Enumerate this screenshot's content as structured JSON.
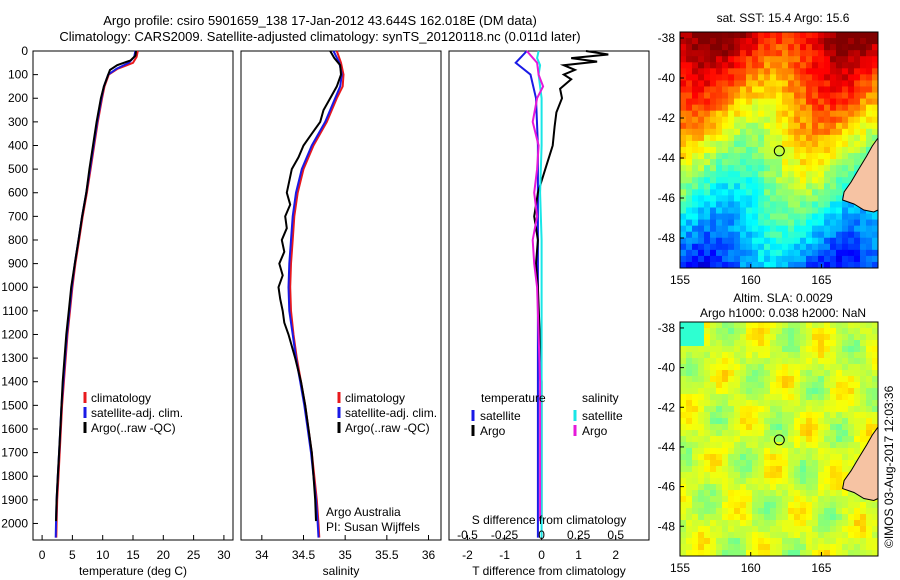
{
  "header": {
    "line1": "Argo profile: csiro 5901659_138 17-Jan-2012 43.644S 162.018E (DM data)",
    "line2": "Climatology: CARS2009. Satellite-adjusted climatology: synTS_20120118.nc (0.011d later)"
  },
  "credit": "©IMOS 03-Aug-2017 12:03:36",
  "colors": {
    "climatology": "#e8191d",
    "satellite": "#1a1ae6",
    "argo": "#000000",
    "sat_salinity": "#19e6e6",
    "argo_salinity": "#e619d9",
    "land": "#f6c3a3"
  },
  "chart_data": [
    {
      "type": "line",
      "panel": "temperature",
      "ylabel_ticks": [
        0,
        100,
        200,
        300,
        400,
        500,
        600,
        700,
        800,
        900,
        1000,
        1100,
        1200,
        1300,
        1400,
        1500,
        1600,
        1700,
        1800,
        1900,
        2000
      ],
      "xlabel": "temperature (deg C)",
      "xlim": [
        -1.5,
        31.5
      ],
      "ylim": [
        2070,
        0
      ],
      "xticks": [
        0,
        5,
        10,
        15,
        20,
        25,
        30
      ],
      "legend": [
        "climatology",
        "satellite-adj. clim.",
        "Argo(..raw -QC)"
      ],
      "series": [
        {
          "name": "climatology",
          "depth": [
            0,
            25,
            50,
            75,
            100,
            150,
            200,
            300,
            400,
            500,
            600,
            700,
            800,
            900,
            1000,
            1100,
            1200,
            1300,
            1400,
            1500,
            1600,
            1700,
            1800,
            1900,
            2000,
            2060
          ],
          "values": [
            15.8,
            15.6,
            15.0,
            12.5,
            11.0,
            10.3,
            9.9,
            9.2,
            8.6,
            8.0,
            7.4,
            6.7,
            6.1,
            5.5,
            5.0,
            4.6,
            4.2,
            3.9,
            3.6,
            3.3,
            3.1,
            2.9,
            2.7,
            2.5,
            2.4,
            2.35
          ]
        },
        {
          "name": "satellite-adj. clim.",
          "depth": [
            0,
            25,
            50,
            75,
            100,
            150,
            200,
            300,
            400,
            500,
            600,
            700,
            800,
            900,
            1000,
            1100,
            1200,
            1300,
            1400,
            1500,
            1600,
            1700,
            1800,
            1900,
            2000,
            2060
          ],
          "values": [
            15.4,
            15.2,
            14.3,
            12.3,
            10.9,
            10.2,
            9.8,
            9.1,
            8.5,
            7.9,
            7.3,
            6.6,
            6.0,
            5.4,
            4.9,
            4.5,
            4.1,
            3.8,
            3.5,
            3.2,
            3.0,
            2.8,
            2.6,
            2.4,
            2.3,
            2.25
          ]
        },
        {
          "name": "Argo(..raw -QC)",
          "depth": [
            0,
            20,
            40,
            60,
            80,
            100,
            150,
            200,
            300,
            400,
            500,
            600,
            700,
            800,
            900,
            1000,
            1100,
            1200,
            1300,
            1400,
            1500,
            1600,
            1700,
            1800,
            1900,
            1990
          ],
          "values": [
            15.5,
            15.4,
            14.6,
            12.4,
            11.2,
            10.9,
            10.2,
            9.7,
            9.0,
            8.4,
            7.8,
            7.3,
            6.6,
            6.0,
            5.4,
            4.8,
            4.4,
            4.0,
            3.7,
            3.4,
            3.2,
            3.0,
            2.8,
            2.6,
            2.4,
            2.3
          ]
        }
      ]
    },
    {
      "type": "line",
      "panel": "salinity",
      "xlabel": "salinity",
      "xlim": [
        33.75,
        36.15
      ],
      "ylim": [
        2070,
        0
      ],
      "xticks": [
        34,
        34.5,
        35,
        35.5,
        36
      ],
      "legend": [
        "climatology",
        "satellite-adj. clim.",
        "Argo(..raw -QC)"
      ],
      "annotation": [
        "Argo Australia",
        "PI: Susan Wijffels"
      ],
      "series": [
        {
          "name": "climatology",
          "depth": [
            0,
            50,
            100,
            150,
            200,
            300,
            400,
            500,
            600,
            700,
            800,
            900,
            1000,
            1100,
            1200,
            1300,
            1400,
            1500,
            1600,
            1700,
            1800,
            1900,
            2000,
            2060
          ],
          "values": [
            34.9,
            34.95,
            34.98,
            34.97,
            34.9,
            34.78,
            34.62,
            34.5,
            34.43,
            34.39,
            34.37,
            34.35,
            34.34,
            34.35,
            34.38,
            34.42,
            34.47,
            34.52,
            34.56,
            34.6,
            34.63,
            34.66,
            34.68,
            34.69
          ]
        },
        {
          "name": "satellite-adj. clim.",
          "depth": [
            0,
            50,
            100,
            150,
            200,
            300,
            400,
            500,
            600,
            700,
            800,
            900,
            1000,
            1100,
            1200,
            1300,
            1400,
            1500,
            1600,
            1700,
            1800,
            1900,
            2000,
            2060
          ],
          "values": [
            34.86,
            34.93,
            34.96,
            34.94,
            34.88,
            34.76,
            34.6,
            34.48,
            34.41,
            34.37,
            34.35,
            34.33,
            34.32,
            34.33,
            34.37,
            34.41,
            34.46,
            34.51,
            34.55,
            34.59,
            34.62,
            34.65,
            34.67,
            34.68
          ]
        },
        {
          "name": "Argo(..raw -QC)",
          "depth": [
            0,
            30,
            60,
            100,
            150,
            200,
            250,
            300,
            350,
            400,
            450,
            500,
            550,
            600,
            650,
            700,
            750,
            800,
            850,
            900,
            950,
            1000,
            1050,
            1100,
            1150,
            1200,
            1300,
            1400,
            1500,
            1600,
            1700,
            1800,
            1900,
            1990
          ],
          "values": [
            34.82,
            34.87,
            34.94,
            34.95,
            34.9,
            34.82,
            34.74,
            34.7,
            34.6,
            34.5,
            34.44,
            34.36,
            34.33,
            34.3,
            34.34,
            34.28,
            34.3,
            34.24,
            34.27,
            34.21,
            34.25,
            34.2,
            34.22,
            34.25,
            34.27,
            34.32,
            34.4,
            34.47,
            34.52,
            34.56,
            34.6,
            34.62,
            34.64,
            34.65
          ]
        }
      ]
    },
    {
      "type": "line",
      "panel": "difference",
      "xlabel": "T difference from climatology",
      "xlabel_top": "S difference from climatology",
      "xlim": [
        -2.5,
        2.9
      ],
      "ylim": [
        2070,
        0
      ],
      "xticks": [
        -2,
        -1,
        0,
        1,
        2
      ],
      "xticks_top": [
        "-0.5",
        "-0.25",
        "0",
        "0.25",
        "0.5"
      ],
      "legend_left": {
        "title": "temperature",
        "items": [
          "satellite",
          "Argo"
        ]
      },
      "legend_right": {
        "title": "salinity",
        "items": [
          "satellite",
          "Argo"
        ]
      },
      "series": [
        {
          "name": "temperature satellite",
          "depth": [
            0,
            50,
            100,
            200,
            400,
            600,
            800,
            1000,
            1200,
            1400,
            1600,
            1800,
            2000,
            2060
          ],
          "values": [
            -0.4,
            -0.7,
            -0.3,
            -0.15,
            -0.1,
            -0.1,
            -0.1,
            -0.1,
            -0.1,
            -0.1,
            -0.1,
            -0.1,
            -0.1,
            -0.1
          ]
        },
        {
          "name": "temperature Argo",
          "depth": [
            0,
            15,
            30,
            45,
            60,
            80,
            100,
            120,
            160,
            200,
            260,
            320,
            400,
            500,
            600,
            700,
            800,
            900,
            1000,
            1200,
            1400,
            1600,
            1800,
            1990
          ],
          "values": [
            1.2,
            1.8,
            0.8,
            1.5,
            0.6,
            0.9,
            0.6,
            0.8,
            0.5,
            0.55,
            0.4,
            0.35,
            0.3,
            0.1,
            -0.1,
            -0.2,
            -0.1,
            -0.15,
            -0.1,
            -0.05,
            0,
            0,
            0,
            0
          ]
        },
        {
          "name": "salinity satellite",
          "depth": [
            0,
            30,
            60,
            100,
            200,
            400,
            600,
            800,
            1000,
            1200,
            1400,
            1600,
            1800,
            2000,
            2060
          ],
          "values": [
            -0.02,
            -0.03,
            -0.01,
            -0.02,
            0,
            0,
            -0.01,
            0,
            0,
            0,
            0,
            0,
            0,
            0,
            0
          ]
        },
        {
          "name": "salinity Argo",
          "depth": [
            0,
            50,
            100,
            150,
            200,
            300,
            400,
            500,
            600,
            700,
            800,
            900,
            1000,
            1200,
            1400,
            1600,
            1800,
            1990
          ],
          "values": [
            -0.1,
            -0.03,
            -0.02,
            0.01,
            -0.03,
            -0.06,
            -0.02,
            -0.03,
            -0.05,
            -0.03,
            -0.06,
            -0.05,
            -0.03,
            -0.02,
            -0.01,
            -0.01,
            -0.01,
            -0.01
          ]
        }
      ]
    },
    {
      "type": "heatmap",
      "panel": "sst_map",
      "title": "sat. SST: 15.4  Argo: 15.6",
      "xticks": [
        155,
        160,
        165
      ],
      "yticks": [
        -38,
        -40,
        -42,
        -44,
        -46,
        -48
      ],
      "xlim": [
        155,
        169
      ],
      "ylim": [
        -49.5,
        -37.7
      ],
      "marker": {
        "lon": 162.018,
        "lat": -43.644
      }
    },
    {
      "type": "heatmap",
      "panel": "sla_map",
      "title_lines": [
        "Altim. SLA: 0.0029",
        "Argo h1000: 0.038 h2000: NaN"
      ],
      "xticks": [
        155,
        160,
        165
      ],
      "yticks": [
        -38,
        -40,
        -42,
        -44,
        -46,
        -48
      ],
      "xlim": [
        155,
        169
      ],
      "ylim": [
        -49.5,
        -37.7
      ],
      "marker": {
        "lon": 162.018,
        "lat": -43.644
      }
    }
  ]
}
